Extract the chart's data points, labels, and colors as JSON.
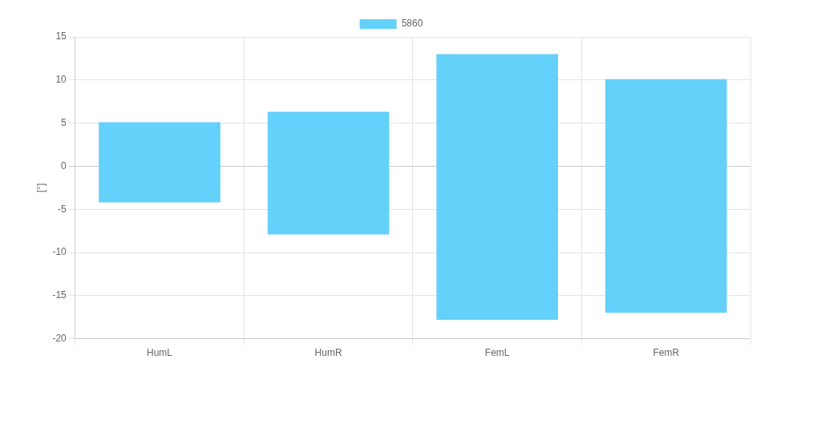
{
  "chart_data": {
    "type": "bar",
    "ylabel": "[°]",
    "categories": [
      "HumL",
      "HumR",
      "FemL",
      "FemR"
    ],
    "series": [
      {
        "name": "5860",
        "color": "#63d1f9",
        "values": [
          9.3,
          14.2,
          30.8,
          27.1
        ],
        "base": [
          -4.2,
          -7.9,
          -17.8,
          -17.0
        ]
      }
    ],
    "ylim": [
      -20,
      15
    ],
    "yticks": [
      -20,
      -15,
      -10,
      -5,
      0,
      5,
      10,
      15
    ],
    "grid": true,
    "legend": "top"
  }
}
